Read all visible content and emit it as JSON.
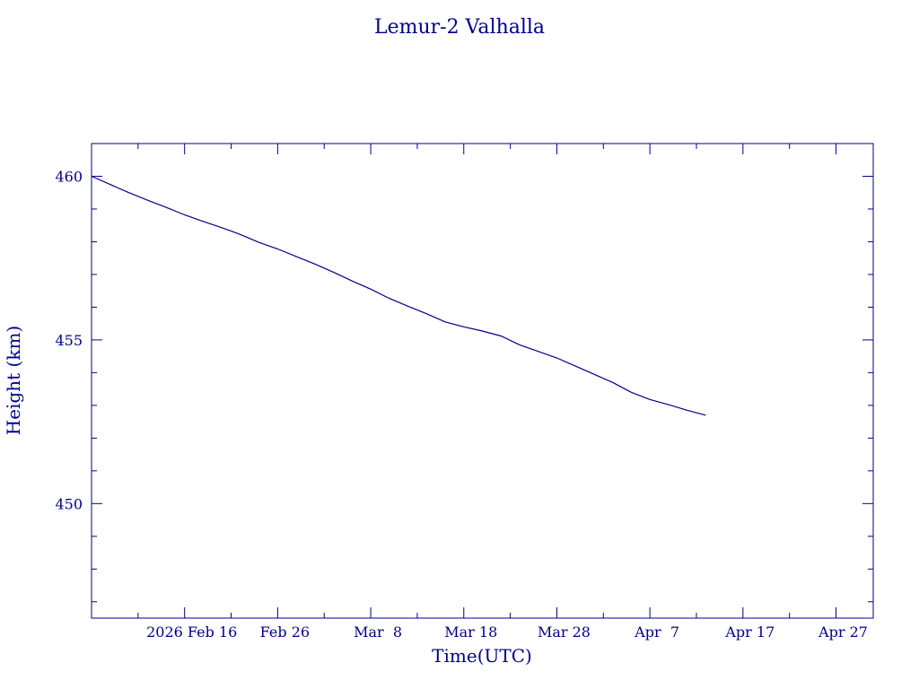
{
  "chart_data": {
    "type": "line",
    "title": "Lemur-2 Valhalla",
    "xlabel": "Time(UTC)",
    "ylabel": "Height (km)",
    "colors": {
      "ink": "#00008b",
      "background": "#ffffff"
    },
    "xlim": [
      "2026-02-06",
      "2026-05-01"
    ],
    "ylim": [
      446.5,
      461.0
    ],
    "x_ticks": [
      {
        "date": "2026-02-16",
        "label": "2026 Feb 16"
      },
      {
        "date": "2026-02-26",
        "label": "Feb 26"
      },
      {
        "date": "2026-03-08",
        "label": "Mar  8"
      },
      {
        "date": "2026-03-18",
        "label": "Mar 18"
      },
      {
        "date": "2026-03-28",
        "label": "Mar 28"
      },
      {
        "date": "2026-04-07",
        "label": "Apr  7"
      },
      {
        "date": "2026-04-17",
        "label": "Apr 17"
      },
      {
        "date": "2026-04-27",
        "label": "Apr 27"
      }
    ],
    "y_ticks": [
      {
        "value": 450,
        "label": "450"
      },
      {
        "value": 455,
        "label": "455"
      },
      {
        "value": 460,
        "label": "460"
      }
    ],
    "grid": false,
    "series": [
      {
        "color": "#00008b",
        "x": [
          "2026-02-06",
          "2026-02-08",
          "2026-02-10",
          "2026-02-12",
          "2026-02-14",
          "2026-02-16",
          "2026-02-18",
          "2026-02-20",
          "2026-02-22",
          "2026-02-24",
          "2026-02-26",
          "2026-02-28",
          "2026-03-02",
          "2026-03-04",
          "2026-03-06",
          "2026-03-08",
          "2026-03-10",
          "2026-03-12",
          "2026-03-14",
          "2026-03-16",
          "2026-03-18",
          "2026-03-20",
          "2026-03-22",
          "2026-03-24",
          "2026-03-26",
          "2026-03-28",
          "2026-03-30",
          "2026-04-01",
          "2026-04-03",
          "2026-04-05",
          "2026-04-07",
          "2026-04-09",
          "2026-04-11",
          "2026-04-13"
        ],
        "y": [
          460.0,
          459.75,
          459.5,
          459.27,
          459.05,
          458.82,
          458.62,
          458.43,
          458.22,
          457.98,
          457.78,
          457.55,
          457.32,
          457.07,
          456.8,
          456.55,
          456.27,
          456.03,
          455.8,
          455.55,
          455.4,
          455.27,
          455.12,
          454.85,
          454.65,
          454.45,
          454.2,
          453.95,
          453.7,
          453.4,
          453.18,
          453.02,
          452.85,
          452.7
        ]
      }
    ]
  }
}
